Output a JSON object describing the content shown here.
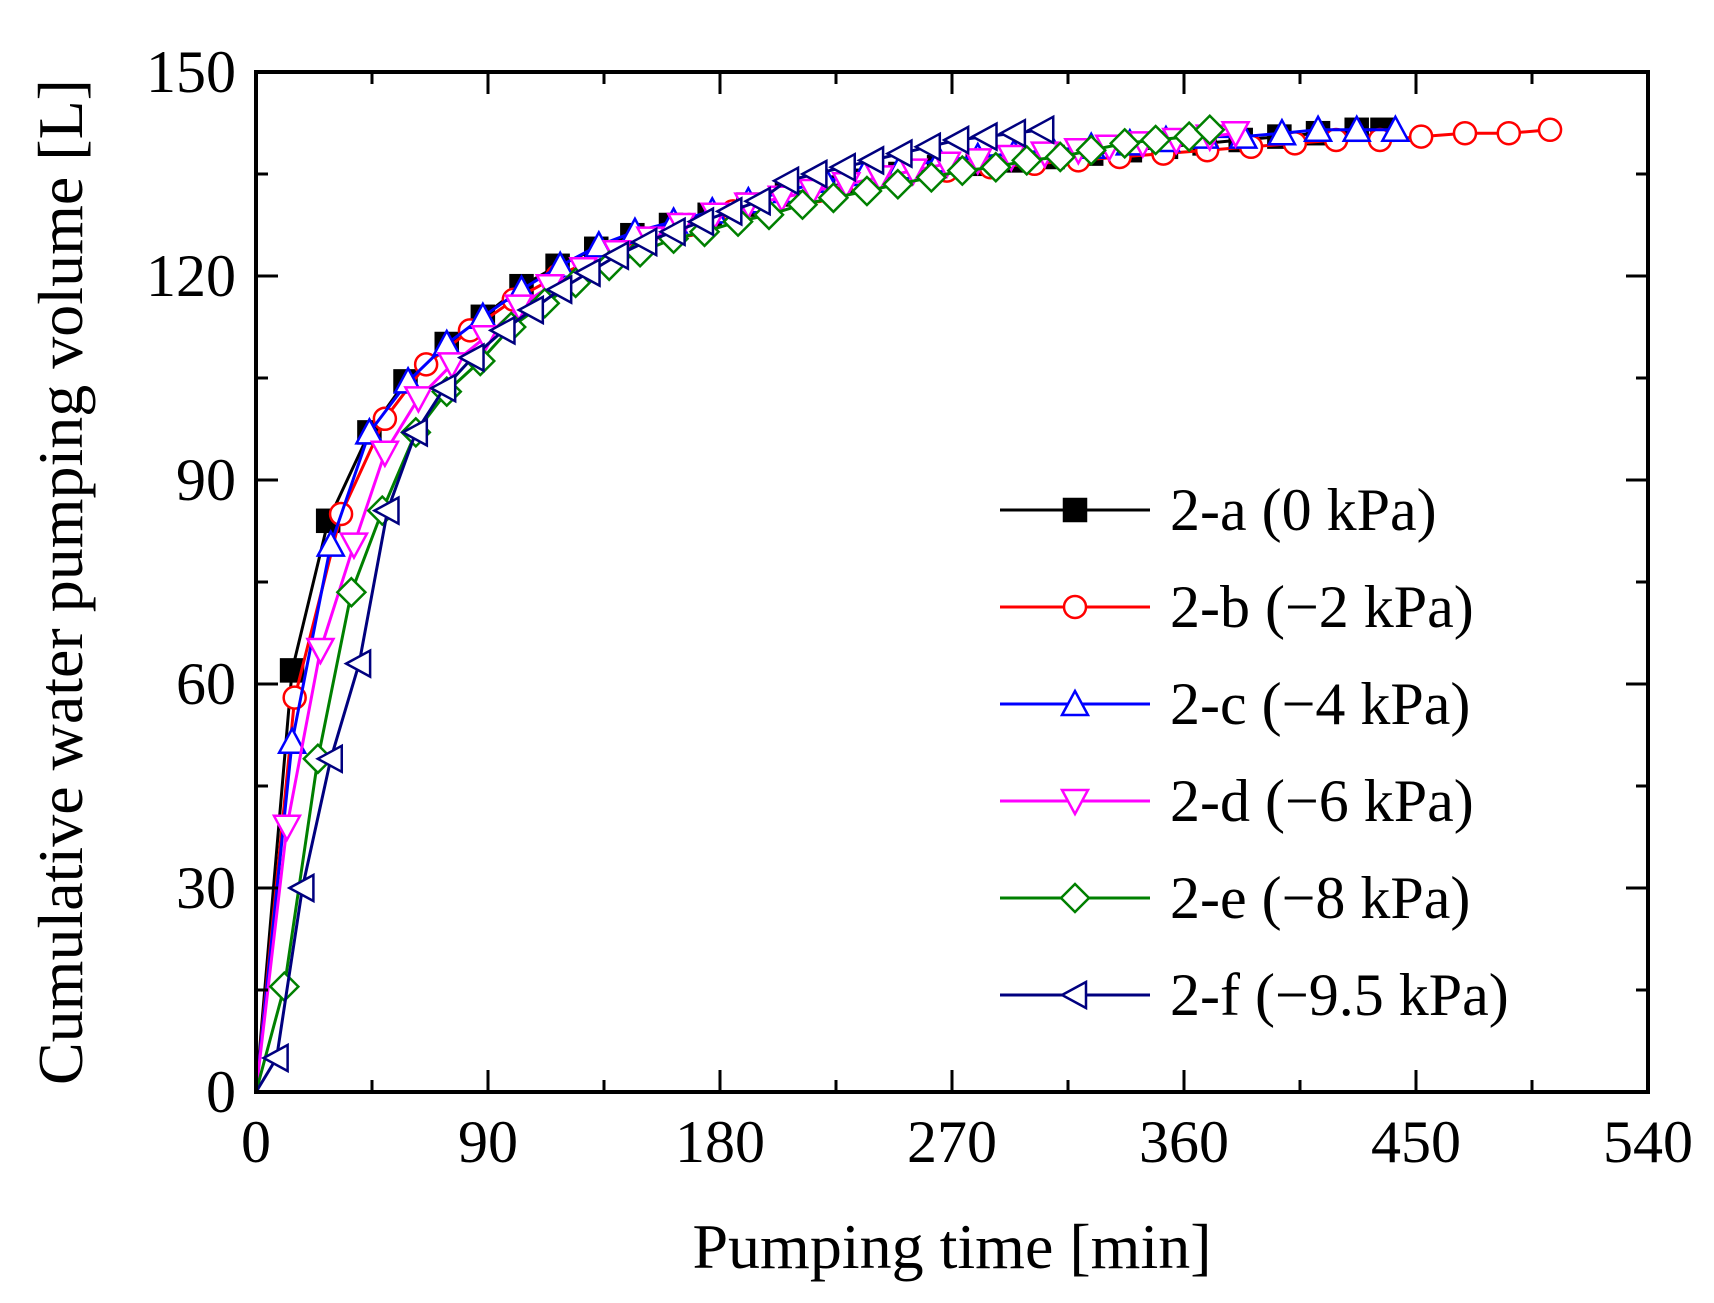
{
  "chart_data": {
    "type": "line",
    "title": "",
    "xlabel": "Pumping time [min]",
    "ylabel": "Cumulative water pumping volume [L]",
    "xlim": [
      0,
      540
    ],
    "ylim": [
      0,
      150
    ],
    "xticks": [
      0,
      90,
      180,
      270,
      360,
      450,
      540
    ],
    "yticks": [
      0,
      30,
      60,
      90,
      120,
      150
    ],
    "xtick_labels": [
      "0",
      "90",
      "180",
      "270",
      "360",
      "450",
      "540"
    ],
    "ytick_labels": [
      "0",
      "30",
      "60",
      "90",
      "120",
      "150"
    ],
    "grid": false,
    "legend_position": "center-right",
    "series": [
      {
        "name": "2-a (0 kPa)",
        "color": "#000000",
        "marker": "square-filled",
        "x": [
          0,
          14,
          28,
          44,
          58,
          74,
          88,
          103,
          117,
          132,
          146,
          161,
          176,
          191,
          206,
          220,
          235,
          250,
          265,
          280,
          294,
          309,
          324,
          339,
          353,
          368,
          382,
          397,
          412,
          427,
          437
        ],
        "y": [
          0,
          62,
          84,
          97,
          104.5,
          110,
          114,
          118.5,
          121.5,
          124,
          126,
          127.5,
          129,
          130.5,
          132,
          133,
          134,
          135,
          136,
          136.5,
          137,
          137.5,
          138,
          138.5,
          139,
          139.5,
          140,
          140.5,
          141,
          141.5,
          141.5
        ]
      },
      {
        "name": "2-b (−2 kPa)",
        "color": "#ff0000",
        "marker": "circle-open",
        "x": [
          0,
          15,
          33,
          50,
          66,
          83,
          100,
          117,
          134,
          151,
          168,
          185,
          201,
          218,
          235,
          251,
          268,
          285,
          302,
          319,
          335,
          352,
          369,
          386,
          403,
          419,
          436,
          452,
          469,
          486,
          502
        ],
        "y": [
          0,
          58,
          85,
          99,
          107,
          112,
          116.5,
          120,
          123,
          125.5,
          127.5,
          129.5,
          131,
          132.5,
          133.5,
          134.5,
          135.5,
          136,
          136.5,
          137,
          137.5,
          138,
          138.5,
          139,
          139.5,
          140,
          140,
          140.5,
          141,
          141,
          141.5
        ]
      },
      {
        "name": "2-c (−4 kPa)",
        "color": "#0000ff",
        "marker": "triangle-up-open",
        "x": [
          0,
          14,
          29,
          44,
          59,
          74,
          88,
          103,
          118,
          133,
          147,
          162,
          177,
          191,
          206,
          221,
          236,
          250,
          265,
          280,
          294,
          309,
          324,
          339,
          353,
          368,
          383,
          398,
          412,
          427,
          442
        ],
        "y": [
          0,
          51.5,
          80.5,
          97,
          104.5,
          110,
          114,
          118,
          121.5,
          124.5,
          126.5,
          128,
          129.5,
          131,
          132.5,
          134,
          135,
          136,
          137,
          137.5,
          138,
          138.5,
          139,
          139.5,
          140,
          140.5,
          140.5,
          141,
          141.5,
          141.5,
          141.5
        ]
      },
      {
        "name": "2-d (−6 kPa)",
        "color": "#ff00ff",
        "marker": "triangle-down-open",
        "x": [
          0,
          12,
          25,
          38,
          50,
          63,
          76,
          89,
          102,
          114,
          127,
          140,
          153,
          165,
          178,
          191,
          204,
          216,
          229,
          242,
          255,
          268,
          280,
          293,
          306,
          319,
          331,
          344,
          357,
          370,
          380
        ],
        "y": [
          0,
          39,
          65,
          80.5,
          94,
          102,
          107,
          111,
          115.5,
          118.5,
          121,
          123.5,
          125.5,
          127.5,
          129,
          130.5,
          131.5,
          132.5,
          133.5,
          134.5,
          135.5,
          136.5,
          137,
          137.5,
          138,
          138.5,
          139,
          139.5,
          140,
          140.5,
          141
        ]
      },
      {
        "name": "2-e (−8 kPa)",
        "color": "#008000",
        "marker": "diamond-open",
        "x": [
          0,
          11,
          24,
          37,
          49,
          62,
          74,
          87,
          99,
          112,
          124,
          137,
          149,
          162,
          174,
          187,
          199,
          212,
          224,
          237,
          249,
          262,
          274,
          287,
          299,
          312,
          324,
          337,
          349,
          362,
          370
        ],
        "y": [
          0,
          15.5,
          49,
          73.5,
          85.5,
          97,
          103,
          107.5,
          112.5,
          116,
          119,
          121.5,
          123.5,
          125.5,
          126.5,
          128,
          129,
          130.5,
          131.5,
          132.5,
          133.5,
          134.5,
          135.5,
          136,
          137,
          137.5,
          138.5,
          139.5,
          140,
          140.5,
          141.5
        ]
      },
      {
        "name": "2-f (−9.5 kPa)",
        "color": "#00007f",
        "marker": "triangle-left-open",
        "x": [
          0,
          8,
          18,
          29,
          40,
          51,
          62,
          73,
          84,
          96,
          107,
          118,
          129,
          140,
          151,
          162,
          173,
          184,
          195,
          206,
          217,
          228,
          239,
          250,
          261,
          272,
          283,
          294,
          305
        ],
        "y": [
          0,
          5,
          30,
          49,
          63,
          85.5,
          97,
          103.5,
          108,
          112,
          115,
          118,
          120.5,
          123,
          125,
          126.5,
          128,
          129.5,
          131,
          134,
          135,
          136,
          137,
          138,
          139,
          140,
          140.5,
          141,
          141.5
        ]
      }
    ]
  }
}
